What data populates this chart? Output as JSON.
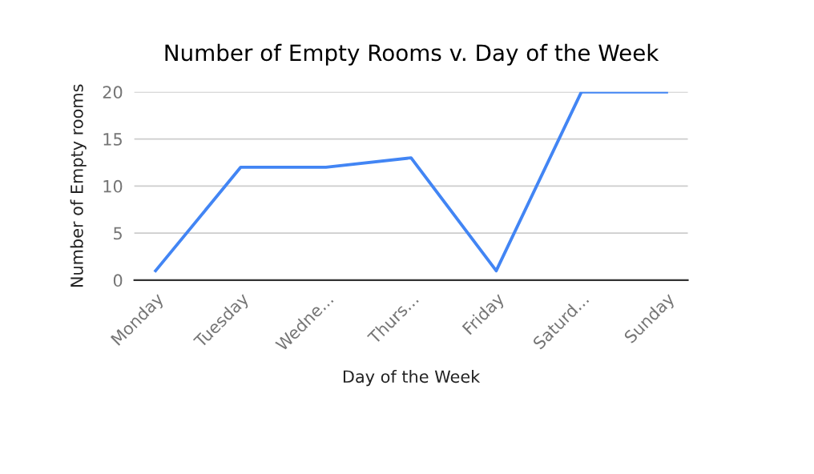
{
  "chart_data": {
    "type": "line",
    "title": "Number of Empty Rooms v. Day of the Week",
    "xlabel": "Day of the Week",
    "ylabel": "Number of Empty rooms",
    "categories": [
      "Monday",
      "Tuesday",
      "Wedne...",
      "Thurs...",
      "Friday",
      "Saturd...",
      "Sunday"
    ],
    "series": [
      {
        "color": "#4285f4",
        "values": [
          1,
          12,
          12,
          13,
          1,
          20,
          20
        ]
      }
    ],
    "ylim": [
      0,
      20
    ],
    "yticks": [
      0,
      5,
      10,
      15,
      20
    ],
    "grid": "y",
    "marker": "none",
    "line_style": "solid"
  }
}
